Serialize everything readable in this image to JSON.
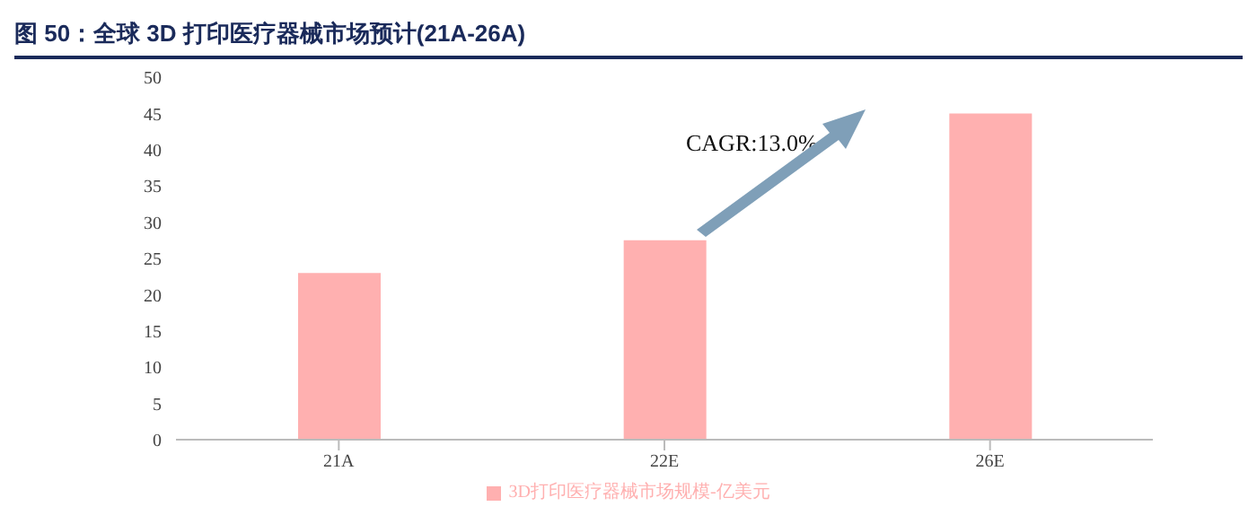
{
  "chart_data": {
    "type": "bar",
    "title": "图 50：全球 3D 打印医疗器械市场预计(21A-26A)",
    "categories": [
      "21A",
      "22E",
      "26E"
    ],
    "series": [
      {
        "name": "3D打印医疗器械市场规模-亿美元",
        "color": "#ffb0b0",
        "values": [
          23,
          27.5,
          45
        ]
      }
    ],
    "ylim": [
      0,
      50
    ],
    "yticks": [
      0,
      5,
      10,
      15,
      20,
      25,
      30,
      35,
      40,
      45,
      50
    ],
    "grid": false,
    "legend": "bottom",
    "annotations": [
      "CAGR:13.0%"
    ]
  }
}
